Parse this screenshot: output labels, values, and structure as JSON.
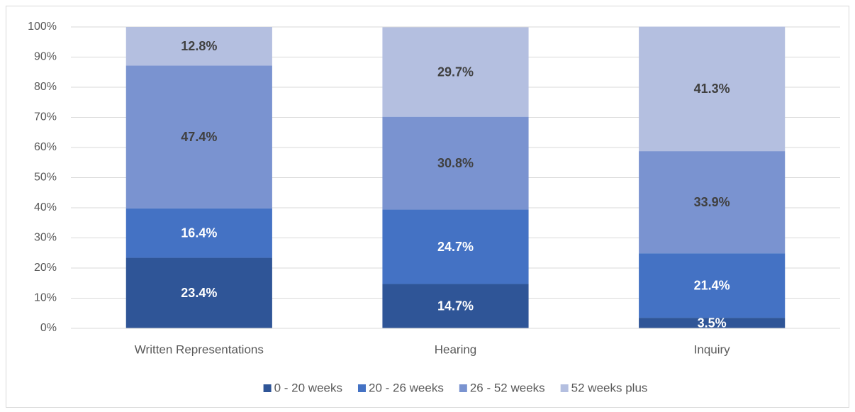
{
  "chart_data": {
    "type": "stacked_bar",
    "categories": [
      "Written Representations",
      "Hearing",
      "Inquiry"
    ],
    "series": [
      {
        "name": "0 - 20 weeks",
        "color": "#2f5597",
        "label_color": "#ffffff",
        "values": [
          23.4,
          14.7,
          3.5
        ],
        "value_labels": [
          "23.4%",
          "14.7%",
          "3.5%"
        ]
      },
      {
        "name": "20 - 26 weeks",
        "color": "#4472c4",
        "label_color": "#ffffff",
        "values": [
          16.4,
          24.7,
          21.4
        ],
        "value_labels": [
          "16.4%",
          "24.7%",
          "21.4%"
        ]
      },
      {
        "name": "26 - 52 weeks",
        "color": "#7a93d0",
        "label_color": "#404040",
        "values": [
          47.4,
          30.8,
          33.9
        ],
        "value_labels": [
          "47.4%",
          "30.8%",
          "33.9%"
        ]
      },
      {
        "name": "52 weeks plus",
        "color": "#b4bfe0",
        "label_color": "#404040",
        "values": [
          12.8,
          29.7,
          41.3
        ],
        "value_labels": [
          "12.8%",
          "29.7%",
          "41.3%"
        ]
      }
    ],
    "ylim": [
      0,
      100
    ],
    "yticks": [
      {
        "value": 0,
        "label": "0%"
      },
      {
        "value": 10,
        "label": "10%"
      },
      {
        "value": 20,
        "label": "20%"
      },
      {
        "value": 30,
        "label": "30%"
      },
      {
        "value": 40,
        "label": "40%"
      },
      {
        "value": 50,
        "label": "50%"
      },
      {
        "value": 60,
        "label": "60%"
      },
      {
        "value": 70,
        "label": "70%"
      },
      {
        "value": 80,
        "label": "80%"
      },
      {
        "value": 90,
        "label": "90%"
      },
      {
        "value": 100,
        "label": "100%"
      }
    ],
    "grid": true,
    "legend": "bottom"
  }
}
